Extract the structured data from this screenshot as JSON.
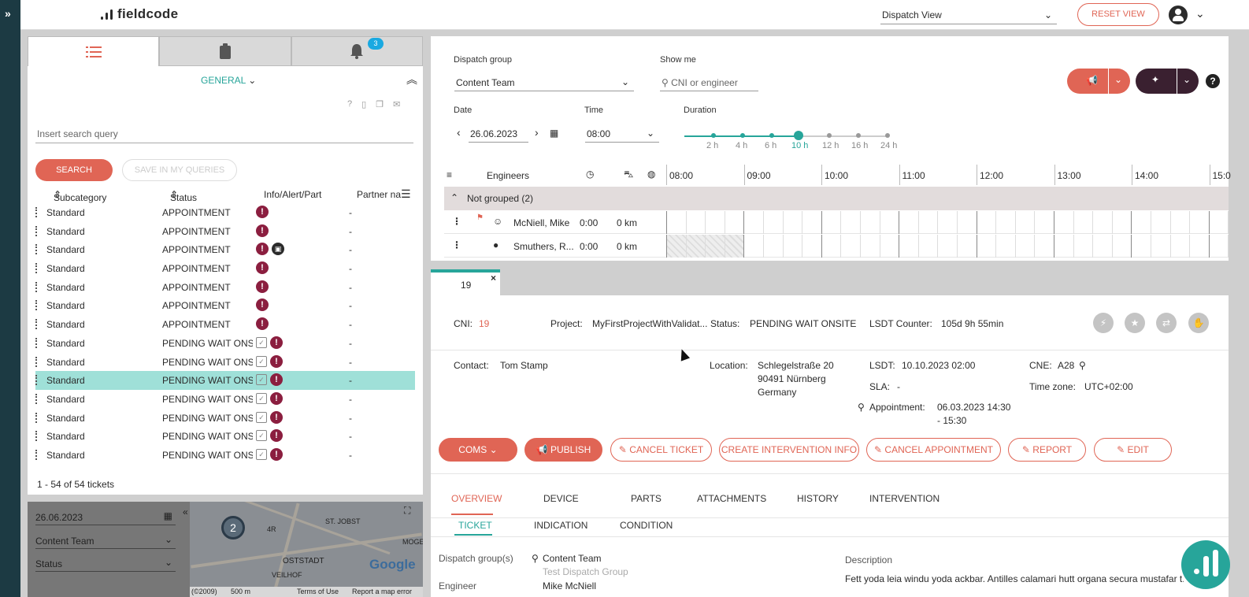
{
  "app": {
    "brand": "fieldcode"
  },
  "topbar": {
    "view_select": "Dispatch View",
    "reset_label": "RESET VIEW"
  },
  "left": {
    "notifications_badge": "3",
    "section": "GENERAL",
    "search_placeholder": "Insert search query",
    "search_label": "SEARCH",
    "save_label": "SAVE IN MY QUERIES",
    "columns": [
      "Subcategory",
      "Status",
      "Info/Alert/Part",
      "Partner na"
    ],
    "rows": [
      {
        "sub": "Standard",
        "status": "APPOINTMENT",
        "cal": false,
        "part": false
      },
      {
        "sub": "Standard",
        "status": "APPOINTMENT",
        "cal": false,
        "part": false
      },
      {
        "sub": "Standard",
        "status": "APPOINTMENT",
        "cal": false,
        "part": true
      },
      {
        "sub": "Standard",
        "status": "APPOINTMENT",
        "cal": false,
        "part": false
      },
      {
        "sub": "Standard",
        "status": "APPOINTMENT",
        "cal": false,
        "part": false
      },
      {
        "sub": "Standard",
        "status": "APPOINTMENT",
        "cal": false,
        "part": false
      },
      {
        "sub": "Standard",
        "status": "APPOINTMENT",
        "cal": false,
        "part": false
      },
      {
        "sub": "Standard",
        "status": "PENDING WAIT ONS...",
        "cal": true,
        "part": false
      },
      {
        "sub": "Standard",
        "status": "PENDING WAIT ONS...",
        "cal": true,
        "part": false
      },
      {
        "sub": "Standard",
        "status": "PENDING WAIT ONS...",
        "cal": true,
        "part": false,
        "selected": true
      },
      {
        "sub": "Standard",
        "status": "PENDING WAIT ONS...",
        "cal": true,
        "part": false
      },
      {
        "sub": "Standard",
        "status": "PENDING WAIT ONS...",
        "cal": true,
        "part": false
      },
      {
        "sub": "Standard",
        "status": "PENDING WAIT ONS...",
        "cal": true,
        "part": false
      },
      {
        "sub": "Standard",
        "status": "PENDING WAIT ONS...",
        "cal": true,
        "part": false
      }
    ],
    "partner_value": "-",
    "count": "1 - 54 of 54 tickets"
  },
  "map": {
    "date": "26.06.2023",
    "group": "Content Team",
    "status": "Status",
    "cluster": "2",
    "labels": [
      "ST. JOBST",
      "4R",
      "OSTSTADT",
      "VEILHOF",
      "MOGE"
    ],
    "footer": [
      "(©2009)",
      "500 m",
      "Terms of Use",
      "Report a map error"
    ],
    "google": "Google"
  },
  "dispatch": {
    "group_label": "Dispatch group",
    "group_value": "Content Team",
    "showme_label": "Show me",
    "showme_placeholder": "CNI or engineer",
    "date_label": "Date",
    "date_value": "26.06.2023",
    "time_label": "Time",
    "time_value": "08:00",
    "duration_label": "Duration",
    "durations": [
      "2 h",
      "4 h",
      "6 h",
      "10 h",
      "12 h",
      "16 h",
      "24 h"
    ],
    "duration_selected": "10 h",
    "engineers_label": "Engineers",
    "hours": [
      "08:00",
      "09:00",
      "10:00",
      "11:00",
      "12:00",
      "13:00",
      "14:00",
      "15:0"
    ],
    "group_row": "Not grouped (2)",
    "engineers": [
      {
        "name": "McNiell, Mike",
        "time": "0:00",
        "km": "0 km"
      },
      {
        "name": "Smuthers, R...",
        "time": "0:00",
        "km": "0 km"
      }
    ]
  },
  "ticket": {
    "tab_label": "19",
    "cni_label": "CNI:",
    "cni": "19",
    "project_label": "Project:",
    "project": "MyFirstProjectWithValidat...",
    "status_label": "Status:",
    "status": "PENDING WAIT ONSITE",
    "lsdt_counter_label": "LSDT Counter:",
    "lsdt_counter": "105d 9h 55min",
    "contact_label": "Contact:",
    "contact": "Tom Stamp",
    "location_label": "Location:",
    "location": [
      "Schlegelstraße 20",
      "90491 Nürnberg",
      "Germany"
    ],
    "lsdt_label": "LSDT:",
    "lsdt": "10.10.2023 02:00",
    "sla_label": "SLA:",
    "sla": "-",
    "appt_label": "Appointment:",
    "appt": [
      "06.03.2023 14:30",
      "- 15:30"
    ],
    "cne_label": "CNE:",
    "cne": "A28",
    "tz_label": "Time zone:",
    "tz": "UTC+02:00",
    "buttons": {
      "coms": "COMS",
      "publish": "PUBLISH",
      "cancel_ticket": "CANCEL TICKET",
      "create_info": "CREATE INTERVENTION INFO",
      "cancel_appt": "CANCEL APPOINTMENT",
      "report": "REPORT",
      "edit": "EDIT"
    },
    "tabs": [
      "OVERVIEW",
      "DEVICE",
      "PARTS",
      "ATTACHMENTS",
      "HISTORY",
      "INTERVENTION"
    ],
    "subtabs": [
      "TICKET",
      "INDICATION",
      "CONDITION"
    ],
    "dg_label": "Dispatch group(s)",
    "dg_value": "Content Team",
    "dg_value2": "Test Dispatch Group",
    "engineer_label": "Engineer",
    "engineer_value": "Mike McNiell",
    "desc_label": "Description",
    "desc": "Fett yoda leia windu yoda ackbar. Antilles calamari hutt organa secura mustafar t..."
  },
  "colors": {
    "accent": "#e06555",
    "teal": "#27a59a",
    "alert": "#8b1e3f",
    "rail": "#1c3a43"
  }
}
